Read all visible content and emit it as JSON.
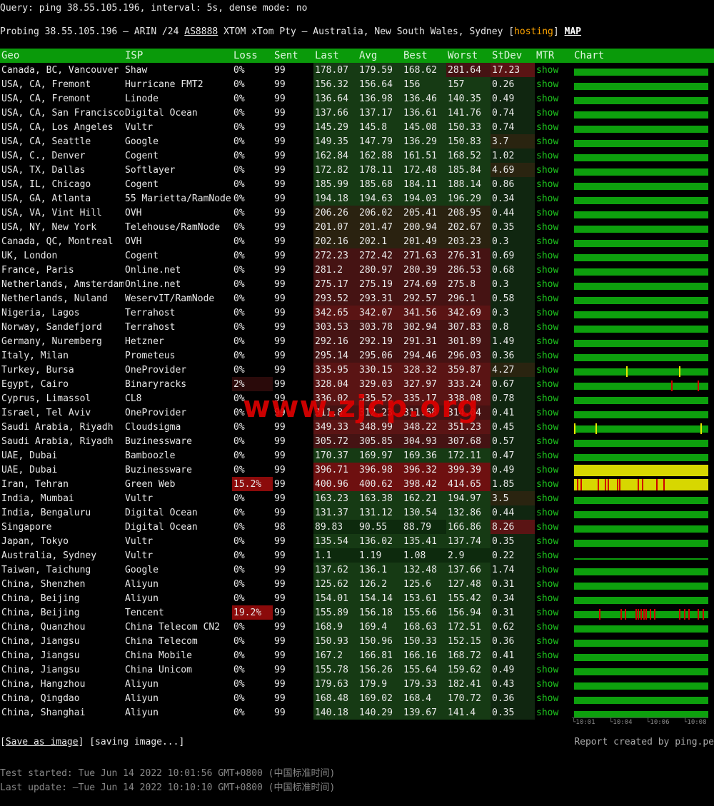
{
  "query": "Query: ping 38.55.105.196, interval: 5s, dense mode: no",
  "probe": {
    "prefix": "Probing 38.55.105.196 – ARIN /24 ",
    "as_link": "AS8888",
    "middle": " XTOM xTom Pty – Australia, New South Wales, Sydney [",
    "hosting": "hosting",
    "close": "] ",
    "map": "MAP"
  },
  "headers": [
    "Geo",
    "ISP",
    "Loss",
    "Sent",
    "Last",
    "Avg",
    "Best",
    "Worst",
    "StDev",
    "MTR",
    "Chart"
  ],
  "mtr_label": "show",
  "rows": [
    {
      "geo": "Canada, BC, Vancouver",
      "isp": "Shaw",
      "loss": "0%",
      "sent": "99",
      "last": "178.07",
      "avg": "179.59",
      "best": "168.62",
      "worst": "281.64",
      "stdev": "17.23",
      "chart": "green",
      "spikes": []
    },
    {
      "geo": "USA, CA, Fremont",
      "isp": "Hurricane FMT2",
      "loss": "0%",
      "sent": "99",
      "last": "156.32",
      "avg": "156.64",
      "best": "156",
      "worst": "157",
      "stdev": "0.26",
      "chart": "green",
      "spikes": []
    },
    {
      "geo": "USA, CA, Fremont",
      "isp": "Linode",
      "loss": "0%",
      "sent": "99",
      "last": "136.64",
      "avg": "136.98",
      "best": "136.46",
      "worst": "140.35",
      "stdev": "0.49",
      "chart": "green",
      "spikes": []
    },
    {
      "geo": "USA, CA, San Francisco",
      "isp": "Digital Ocean",
      "loss": "0%",
      "sent": "99",
      "last": "137.66",
      "avg": "137.17",
      "best": "136.61",
      "worst": "141.76",
      "stdev": "0.74",
      "chart": "green",
      "spikes": []
    },
    {
      "geo": "USA, CA, Los Angeles",
      "isp": "Vultr",
      "loss": "0%",
      "sent": "99",
      "last": "145.29",
      "avg": "145.8",
      "best": "145.08",
      "worst": "150.33",
      "stdev": "0.74",
      "chart": "green",
      "spikes": []
    },
    {
      "geo": "USA, CA, Seattle",
      "isp": "Google",
      "loss": "0%",
      "sent": "99",
      "last": "149.35",
      "avg": "147.79",
      "best": "136.29",
      "worst": "150.83",
      "stdev": "3.7",
      "chart": "green",
      "spikes": []
    },
    {
      "geo": "USA, C., Denver",
      "isp": "Cogent",
      "loss": "0%",
      "sent": "99",
      "last": "162.84",
      "avg": "162.88",
      "best": "161.51",
      "worst": "168.52",
      "stdev": "1.02",
      "chart": "green",
      "spikes": []
    },
    {
      "geo": "USA, TX, Dallas",
      "isp": "Softlayer",
      "loss": "0%",
      "sent": "99",
      "last": "172.82",
      "avg": "178.11",
      "best": "172.48",
      "worst": "185.84",
      "stdev": "4.69",
      "chart": "green",
      "spikes": []
    },
    {
      "geo": "USA, IL, Chicago",
      "isp": "Cogent",
      "loss": "0%",
      "sent": "99",
      "last": "185.99",
      "avg": "185.68",
      "best": "184.11",
      "worst": "188.14",
      "stdev": "0.86",
      "chart": "green",
      "spikes": []
    },
    {
      "geo": "USA, GA, Atlanta",
      "isp": "55 Marietta/RamNode",
      "loss": "0%",
      "sent": "99",
      "last": "194.18",
      "avg": "194.63",
      "best": "194.03",
      "worst": "196.29",
      "stdev": "0.34",
      "chart": "green",
      "spikes": []
    },
    {
      "geo": "USA, VA, Vint Hill",
      "isp": "OVH",
      "loss": "0%",
      "sent": "99",
      "last": "206.26",
      "avg": "206.02",
      "best": "205.41",
      "worst": "208.95",
      "stdev": "0.44",
      "chart": "green",
      "spikes": []
    },
    {
      "geo": "USA, NY, New York",
      "isp": "Telehouse/RamNode",
      "loss": "0%",
      "sent": "99",
      "last": "201.07",
      "avg": "201.47",
      "best": "200.94",
      "worst": "202.67",
      "stdev": "0.35",
      "chart": "green",
      "spikes": []
    },
    {
      "geo": "Canada, QC, Montreal",
      "isp": "OVH",
      "loss": "0%",
      "sent": "99",
      "last": "202.16",
      "avg": "202.1",
      "best": "201.49",
      "worst": "203.23",
      "stdev": "0.3",
      "chart": "green",
      "spikes": []
    },
    {
      "geo": "UK, London",
      "isp": "Cogent",
      "loss": "0%",
      "sent": "99",
      "last": "272.23",
      "avg": "272.42",
      "best": "271.63",
      "worst": "276.31",
      "stdev": "0.69",
      "chart": "green",
      "spikes": []
    },
    {
      "geo": "France, Paris",
      "isp": "Online.net",
      "loss": "0%",
      "sent": "99",
      "last": "281.2",
      "avg": "280.97",
      "best": "280.39",
      "worst": "286.53",
      "stdev": "0.68",
      "chart": "green",
      "spikes": []
    },
    {
      "geo": "Netherlands, Amsterdam",
      "isp": "Online.net",
      "loss": "0%",
      "sent": "99",
      "last": "275.17",
      "avg": "275.19",
      "best": "274.69",
      "worst": "275.8",
      "stdev": "0.3",
      "chart": "green",
      "spikes": []
    },
    {
      "geo": "Netherlands, Nuland",
      "isp": "WeservIT/RamNode",
      "loss": "0%",
      "sent": "99",
      "last": "293.52",
      "avg": "293.31",
      "best": "292.57",
      "worst": "296.1",
      "stdev": "0.58",
      "chart": "green",
      "spikes": []
    },
    {
      "geo": "Nigeria, Lagos",
      "isp": "Terrahost",
      "loss": "0%",
      "sent": "99",
      "last": "342.65",
      "avg": "342.07",
      "best": "341.56",
      "worst": "342.69",
      "stdev": "0.3",
      "chart": "green",
      "spikes": []
    },
    {
      "geo": "Norway, Sandefjord",
      "isp": "Terrahost",
      "loss": "0%",
      "sent": "99",
      "last": "303.53",
      "avg": "303.78",
      "best": "302.94",
      "worst": "307.83",
      "stdev": "0.8",
      "chart": "green",
      "spikes": []
    },
    {
      "geo": "Germany, Nuremberg",
      "isp": "Hetzner",
      "loss": "0%",
      "sent": "99",
      "last": "292.16",
      "avg": "292.19",
      "best": "291.31",
      "worst": "301.89",
      "stdev": "1.49",
      "chart": "green",
      "spikes": []
    },
    {
      "geo": "Italy, Milan",
      "isp": "Prometeus",
      "loss": "0%",
      "sent": "99",
      "last": "295.14",
      "avg": "295.06",
      "best": "294.46",
      "worst": "296.03",
      "stdev": "0.36",
      "chart": "green",
      "spikes": []
    },
    {
      "geo": "Turkey, Bursa",
      "isp": "OneProvider",
      "loss": "0%",
      "sent": "99",
      "last": "335.95",
      "avg": "330.15",
      "best": "328.32",
      "worst": "359.87",
      "stdev": "4.27",
      "chart": "green",
      "spikes": [
        {
          "pos": 0.39,
          "color": "#e6e600"
        },
        {
          "pos": 0.79,
          "color": "#e6e600"
        }
      ]
    },
    {
      "geo": "Egypt, Cairo",
      "isp": "Binaryracks",
      "loss": "2%",
      "sent": "99",
      "last": "328.04",
      "avg": "329.03",
      "best": "327.97",
      "worst": "333.24",
      "stdev": "0.67",
      "chart": "green",
      "spikes": [
        {
          "pos": 0.73,
          "color": "#d00000"
        },
        {
          "pos": 0.93,
          "color": "#d00000"
        }
      ]
    },
    {
      "geo": "Cyprus, Limassol",
      "isp": "CL8",
      "loss": "0%",
      "sent": "99",
      "last": "336.02",
      "avg": "335.52",
      "best": "335.17",
      "worst": "338.08",
      "stdev": "0.78",
      "chart": "green",
      "spikes": []
    },
    {
      "geo": "Israel, Tel Aviv",
      "isp": "OneProvider",
      "loss": "0%",
      "sent": "99",
      "last": "311.8",
      "avg": "312.23",
      "best": "311.68",
      "worst": "314.04",
      "stdev": "0.41",
      "chart": "green",
      "spikes": []
    },
    {
      "geo": "Saudi Arabia, Riyadh",
      "isp": "Cloudsigma",
      "loss": "0%",
      "sent": "99",
      "last": "349.33",
      "avg": "348.99",
      "best": "348.22",
      "worst": "351.23",
      "stdev": "0.45",
      "chart": "green",
      "spikes": [
        {
          "pos": 0.0,
          "color": "#e6e600"
        },
        {
          "pos": 0.16,
          "color": "#e6e600"
        },
        {
          "pos": 0.95,
          "color": "#e6e600"
        }
      ]
    },
    {
      "geo": "Saudi Arabia, Riyadh",
      "isp": "Buzinessware",
      "loss": "0%",
      "sent": "99",
      "last": "305.72",
      "avg": "305.85",
      "best": "304.93",
      "worst": "307.68",
      "stdev": "0.57",
      "chart": "green",
      "spikes": []
    },
    {
      "geo": "UAE, Dubai",
      "isp": "Bamboozle",
      "loss": "0%",
      "sent": "99",
      "last": "170.37",
      "avg": "169.97",
      "best": "169.36",
      "worst": "172.11",
      "stdev": "0.47",
      "chart": "green",
      "spikes": []
    },
    {
      "geo": "UAE, Dubai",
      "isp": "Buzinessware",
      "loss": "0%",
      "sent": "99",
      "last": "396.71",
      "avg": "396.98",
      "best": "396.32",
      "worst": "399.39",
      "stdev": "0.49",
      "chart": "yellow",
      "spikes": []
    },
    {
      "geo": "Iran, Tehran",
      "isp": "Green Web",
      "loss": "15.2%",
      "sent": "99",
      "last": "400.96",
      "avg": "400.62",
      "best": "398.42",
      "worst": "414.65",
      "stdev": "1.85",
      "chart": "yellow",
      "spikes": [
        {
          "pos": 0.02,
          "color": "#d00000"
        },
        {
          "pos": 0.05,
          "color": "#d00000"
        },
        {
          "pos": 0.18,
          "color": "#d00000"
        },
        {
          "pos": 0.23,
          "color": "#d00000"
        },
        {
          "pos": 0.25,
          "color": "#d00000"
        },
        {
          "pos": 0.32,
          "color": "#d00000"
        },
        {
          "pos": 0.34,
          "color": "#d00000"
        },
        {
          "pos": 0.48,
          "color": "#d00000"
        },
        {
          "pos": 0.51,
          "color": "#d00000"
        },
        {
          "pos": 0.62,
          "color": "#d00000"
        },
        {
          "pos": 0.67,
          "color": "#d00000"
        }
      ]
    },
    {
      "geo": "India, Mumbai",
      "isp": "Vultr",
      "loss": "0%",
      "sent": "99",
      "last": "163.23",
      "avg": "163.38",
      "best": "162.21",
      "worst": "194.97",
      "stdev": "3.5",
      "chart": "green",
      "spikes": []
    },
    {
      "geo": "India, Bengaluru",
      "isp": "Digital Ocean",
      "loss": "0%",
      "sent": "99",
      "last": "131.37",
      "avg": "131.12",
      "best": "130.54",
      "worst": "132.86",
      "stdev": "0.44",
      "chart": "green",
      "spikes": []
    },
    {
      "geo": "Singapore",
      "isp": "Digital Ocean",
      "loss": "0%",
      "sent": "98",
      "last": "89.83",
      "avg": "90.55",
      "best": "88.79",
      "worst": "166.86",
      "stdev": "8.26",
      "chart": "green",
      "spikes": []
    },
    {
      "geo": "Japan, Tokyo",
      "isp": "Vultr",
      "loss": "0%",
      "sent": "99",
      "last": "135.54",
      "avg": "136.02",
      "best": "135.41",
      "worst": "137.74",
      "stdev": "0.35",
      "chart": "green",
      "spikes": []
    },
    {
      "geo": "Australia, Sydney",
      "isp": "Vultr",
      "loss": "0%",
      "sent": "99",
      "last": "1.1",
      "avg": "1.19",
      "best": "1.08",
      "worst": "2.9",
      "stdev": "0.22",
      "chart": "low",
      "spikes": []
    },
    {
      "geo": "Taiwan, Taichung",
      "isp": "Google",
      "loss": "0%",
      "sent": "99",
      "last": "137.62",
      "avg": "136.1",
      "best": "132.48",
      "worst": "137.66",
      "stdev": "1.74",
      "chart": "green",
      "spikes": []
    },
    {
      "geo": "China, Shenzhen",
      "isp": "Aliyun",
      "loss": "0%",
      "sent": "99",
      "last": "125.62",
      "avg": "126.2",
      "best": "125.6",
      "worst": "127.48",
      "stdev": "0.31",
      "chart": "green",
      "spikes": []
    },
    {
      "geo": "China, Beijing",
      "isp": "Aliyun",
      "loss": "0%",
      "sent": "99",
      "last": "154.01",
      "avg": "154.14",
      "best": "153.61",
      "worst": "155.42",
      "stdev": "0.34",
      "chart": "green",
      "spikes": []
    },
    {
      "geo": "China, Beijing",
      "isp": "Tencent",
      "loss": "19.2%",
      "sent": "99",
      "last": "155.89",
      "avg": "156.18",
      "best": "155.66",
      "worst": "156.94",
      "stdev": "0.31",
      "chart": "green",
      "spikes": [
        {
          "pos": 0.19,
          "color": "#d00000"
        },
        {
          "pos": 0.35,
          "color": "#d00000"
        },
        {
          "pos": 0.38,
          "color": "#d00000"
        },
        {
          "pos": 0.46,
          "color": "#d00000"
        },
        {
          "pos": 0.48,
          "color": "#d00000"
        },
        {
          "pos": 0.5,
          "color": "#d00000"
        },
        {
          "pos": 0.52,
          "color": "#d00000"
        },
        {
          "pos": 0.54,
          "color": "#d00000"
        },
        {
          "pos": 0.57,
          "color": "#d00000"
        },
        {
          "pos": 0.6,
          "color": "#d00000"
        },
        {
          "pos": 0.79,
          "color": "#d00000"
        },
        {
          "pos": 0.83,
          "color": "#d00000"
        },
        {
          "pos": 0.86,
          "color": "#d00000"
        },
        {
          "pos": 0.93,
          "color": "#d00000"
        },
        {
          "pos": 0.97,
          "color": "#d00000"
        }
      ]
    },
    {
      "geo": "China, Quanzhou",
      "isp": "China Telecom CN2",
      "loss": "0%",
      "sent": "99",
      "last": "168.9",
      "avg": "169.4",
      "best": "168.63",
      "worst": "172.51",
      "stdev": "0.62",
      "chart": "green",
      "spikes": []
    },
    {
      "geo": "China, Jiangsu",
      "isp": "China Telecom",
      "loss": "0%",
      "sent": "99",
      "last": "150.93",
      "avg": "150.96",
      "best": "150.33",
      "worst": "152.15",
      "stdev": "0.36",
      "chart": "green",
      "spikes": []
    },
    {
      "geo": "China, Jiangsu",
      "isp": "China Mobile",
      "loss": "0%",
      "sent": "99",
      "last": "167.2",
      "avg": "166.81",
      "best": "166.16",
      "worst": "168.72",
      "stdev": "0.41",
      "chart": "green",
      "spikes": []
    },
    {
      "geo": "China, Jiangsu",
      "isp": "China Unicom",
      "loss": "0%",
      "sent": "99",
      "last": "155.78",
      "avg": "156.26",
      "best": "155.64",
      "worst": "159.62",
      "stdev": "0.49",
      "chart": "green",
      "spikes": []
    },
    {
      "geo": "China, Hangzhou",
      "isp": "Aliyun",
      "loss": "0%",
      "sent": "99",
      "last": "179.63",
      "avg": "179.9",
      "best": "179.33",
      "worst": "182.41",
      "stdev": "0.43",
      "chart": "green",
      "spikes": []
    },
    {
      "geo": "China, Qingdao",
      "isp": "Aliyun",
      "loss": "0%",
      "sent": "99",
      "last": "168.48",
      "avg": "169.02",
      "best": "168.4",
      "worst": "170.72",
      "stdev": "0.36",
      "chart": "green",
      "spikes": []
    },
    {
      "geo": "China, Shanghai",
      "isp": "Aliyun",
      "loss": "0%",
      "sent": "99",
      "last": "140.18",
      "avg": "140.29",
      "best": "139.67",
      "worst": "141.4",
      "stdev": "0.35",
      "chart": "green",
      "spikes": []
    }
  ],
  "axis_labels": [
    "10:01",
    "10:04",
    "10:06",
    "10:08"
  ],
  "footer": {
    "save_open": "[",
    "save_link": "Save as image",
    "save_close": "]",
    "saving": "[saving image...]",
    "credit": "Report created by ping.pe",
    "started": "Test started: Tue Jun 14 2022 10:01:56 GMT+0800 (中国标准时间)",
    "updated": "Last update: –Tue Jun 14 2022 10:10:10 GMT+0800 (中国标准时间)"
  },
  "watermark": "www.zjcp.org",
  "colors": {
    "header_green": "#0a9a0a",
    "chart_green": "#0da00d",
    "chart_yellow": "#d7d700",
    "mtr_green": "#1ec81e",
    "hosting_orange": "#ffa500",
    "loss_red": "#8b0a0a"
  }
}
